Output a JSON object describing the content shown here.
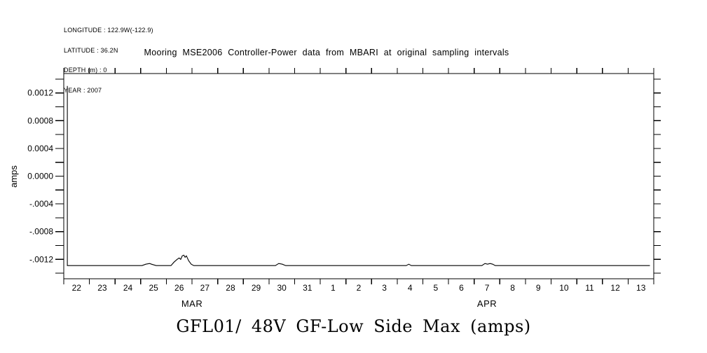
{
  "header": {
    "info_lines": [
      "LONGITUDE : 122.9W(-122.9)",
      "LATITUDE : 36.2N",
      "DEPTH (m) : 0",
      "YEAR : 2007"
    ]
  },
  "title": "Mooring MSE2006 Controller-Power data from MBARI at original sampling intervals",
  "bottom_title": "GFL01/ 48V GF-Low Side Max (amps)",
  "colors": {
    "line": "#000000",
    "text": "#000000",
    "background": "#ffffff"
  },
  "chart_data": {
    "type": "line",
    "title": "Mooring MSE2006 Controller-Power data from MBARI at original sampling intervals",
    "series_caption": "GFL01/ 48V GF-Low Side Max (amps)",
    "ylabel": "amps",
    "xlabel": "",
    "grid": false,
    "legend": "none",
    "ylim": [
      -0.00148,
      0.00148
    ],
    "x_axis": {
      "start": "2007-03-22 00:00",
      "end": "2007-04-14 00:00",
      "num_day_intervals": 23,
      "day_labels": [
        "22",
        "23",
        "24",
        "25",
        "26",
        "27",
        "28",
        "29",
        "30",
        "31",
        "1",
        "2",
        "3",
        "4",
        "5",
        "6",
        "7",
        "8",
        "9",
        "10",
        "11",
        "12",
        "13"
      ],
      "month_labels": [
        {
          "label": "MAR",
          "center_day_offset": 5.0
        },
        {
          "label": "APR",
          "center_day_offset": 16.5
        }
      ]
    },
    "y_ticks": [
      {
        "value": 0.0014,
        "label": ""
      },
      {
        "value": 0.0012,
        "label": "0.0012"
      },
      {
        "value": 0.001,
        "label": ""
      },
      {
        "value": 0.0008,
        "label": "0.0008"
      },
      {
        "value": 0.0006,
        "label": ""
      },
      {
        "value": 0.0004,
        "label": "0.0004"
      },
      {
        "value": 0.0002,
        "label": ""
      },
      {
        "value": 0.0,
        "label": "0.0000"
      },
      {
        "value": -0.0002,
        "label": ""
      },
      {
        "value": -0.0004,
        "label": "-.0004"
      },
      {
        "value": -0.0006,
        "label": ""
      },
      {
        "value": -0.0008,
        "label": "-.0008"
      },
      {
        "value": -0.001,
        "label": ""
      },
      {
        "value": -0.0012,
        "label": "-.0012"
      },
      {
        "value": -0.0014,
        "label": ""
      }
    ],
    "series": [
      {
        "name": "GFL01/ 48V GF-Low Side Max",
        "units": "amps",
        "x_unit": "days since 2007-03-22 00:00",
        "points": [
          [
            0.14,
            0.0013
          ],
          [
            0.14,
            -0.00129
          ],
          [
            3.05,
            -0.00129
          ],
          [
            3.2,
            -0.00127
          ],
          [
            3.35,
            -0.00126
          ],
          [
            3.42,
            -0.00127
          ],
          [
            3.6,
            -0.00129
          ],
          [
            4.18,
            -0.00129
          ],
          [
            4.3,
            -0.00124
          ],
          [
            4.42,
            -0.0012
          ],
          [
            4.5,
            -0.00118
          ],
          [
            4.56,
            -0.0012
          ],
          [
            4.62,
            -0.00115
          ],
          [
            4.68,
            -0.00114
          ],
          [
            4.73,
            -0.00117
          ],
          [
            4.78,
            -0.00115
          ],
          [
            4.87,
            -0.00122
          ],
          [
            4.97,
            -0.00127
          ],
          [
            5.07,
            -0.00129
          ],
          [
            8.25,
            -0.00129
          ],
          [
            8.38,
            -0.00126
          ],
          [
            8.52,
            -0.00127
          ],
          [
            8.65,
            -0.00129
          ],
          [
            13.35,
            -0.00129
          ],
          [
            13.45,
            -0.00127
          ],
          [
            13.55,
            -0.00129
          ],
          [
            16.3,
            -0.00129
          ],
          [
            16.42,
            -0.00126
          ],
          [
            16.52,
            -0.00127
          ],
          [
            16.62,
            -0.00126
          ],
          [
            16.72,
            -0.00127
          ],
          [
            16.82,
            -0.00129
          ],
          [
            22.85,
            -0.00129
          ]
        ]
      }
    ]
  }
}
